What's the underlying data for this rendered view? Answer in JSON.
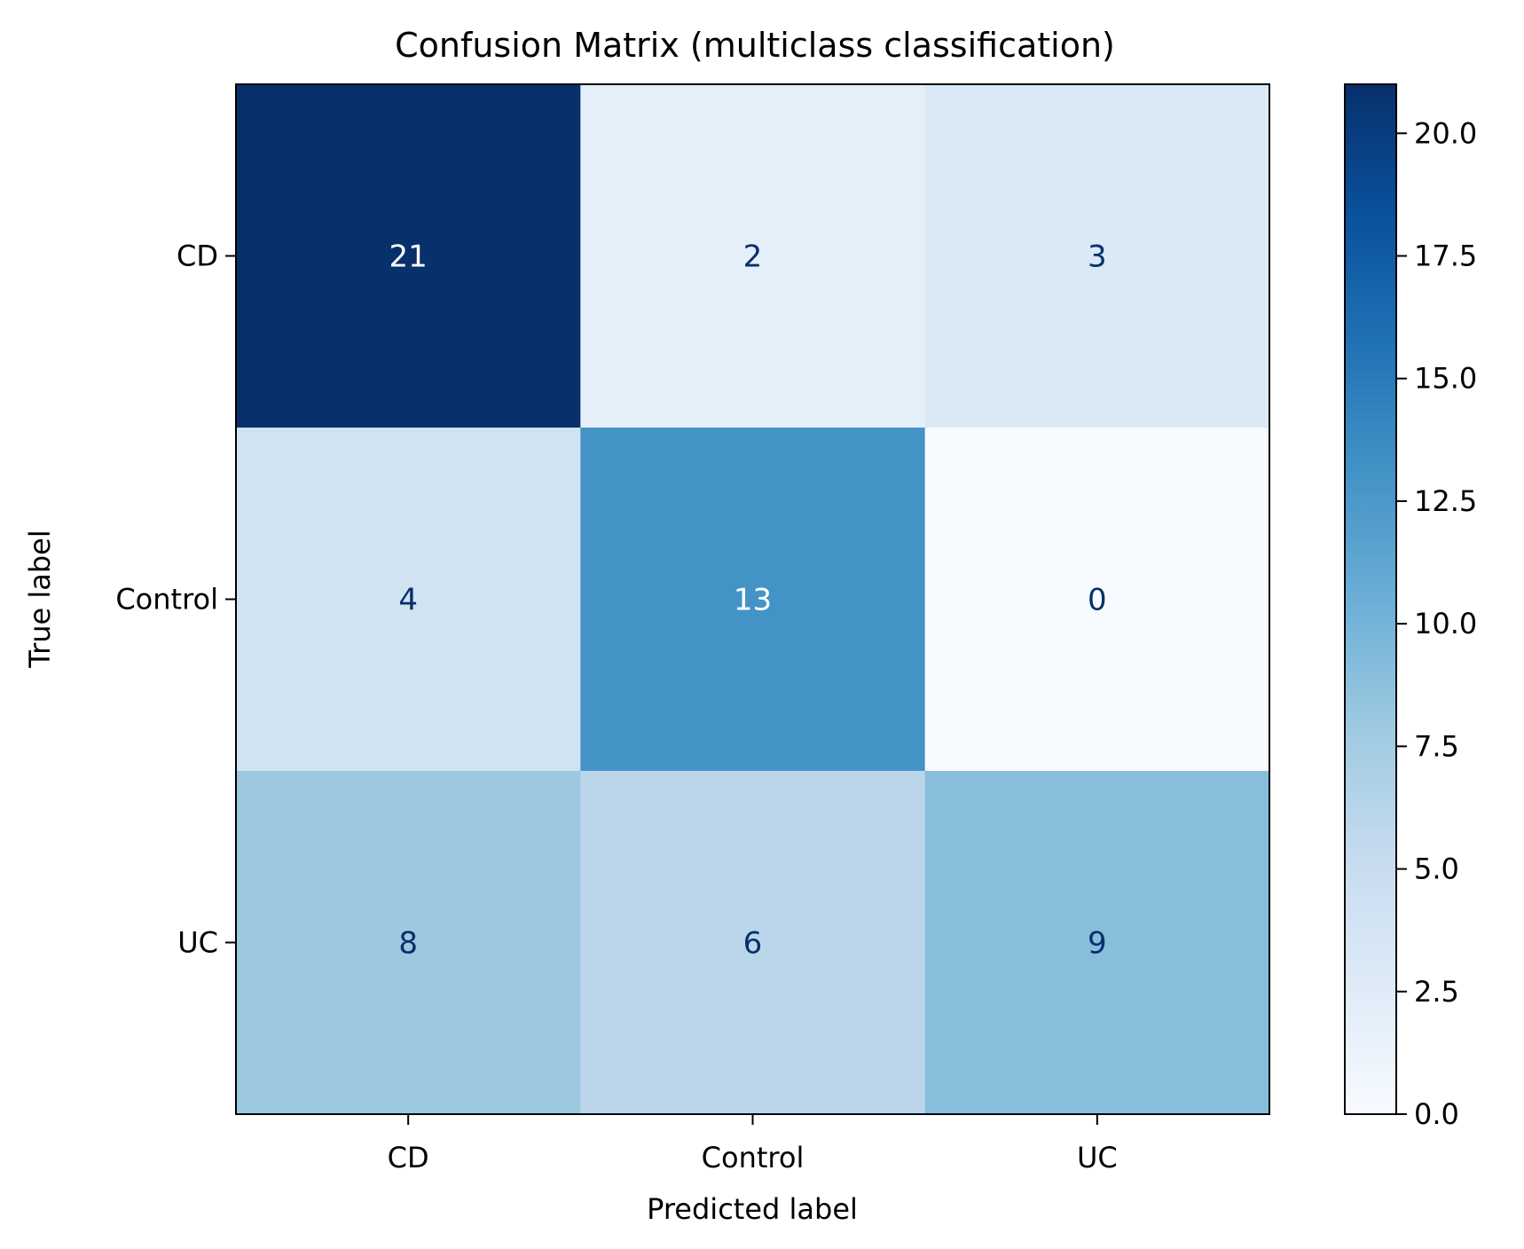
{
  "chart_data": {
    "type": "heatmap",
    "title": "Confusion Matrix (multiclass classification)",
    "xlabel": "Predicted label",
    "ylabel": "True label",
    "x_categories": [
      "CD",
      "Control",
      "UC"
    ],
    "y_categories": [
      "CD",
      "Control",
      "UC"
    ],
    "values": [
      [
        21,
        2,
        3
      ],
      [
        4,
        13,
        0
      ],
      [
        8,
        6,
        9
      ]
    ],
    "value_labels": [
      [
        "21",
        "2",
        "3"
      ],
      [
        "4",
        "13",
        "0"
      ],
      [
        "8",
        "6",
        "9"
      ]
    ],
    "colormap": "Blues",
    "colorbar": {
      "range": [
        0,
        21
      ],
      "ticks": [
        0,
        2.5,
        5,
        7.5,
        10,
        12.5,
        15,
        17.5,
        20
      ],
      "tick_labels": [
        "0.0",
        "2.5",
        "5.0",
        "7.5",
        "10.0",
        "12.5",
        "15.0",
        "17.5",
        "20.0"
      ]
    },
    "grid": false
  }
}
